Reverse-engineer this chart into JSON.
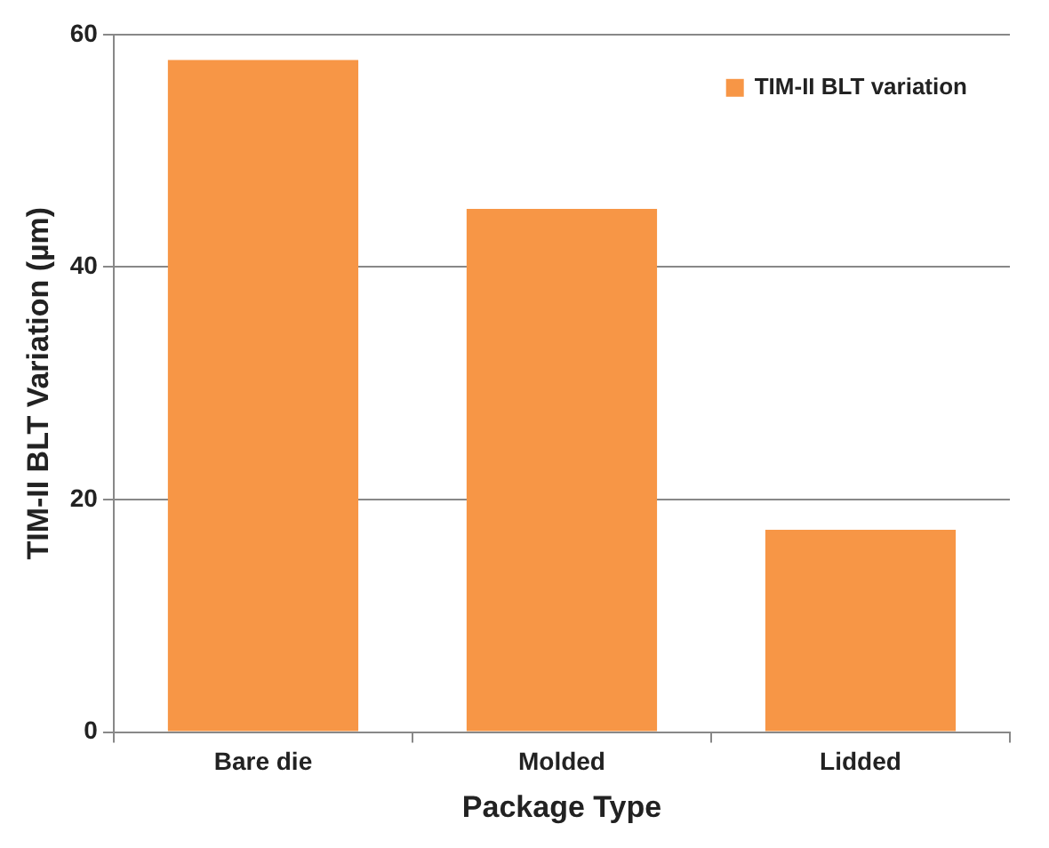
{
  "chart_data": {
    "type": "bar",
    "xlabel": "Package Type",
    "ylabel": "TIM-II BLT Variation (µm)",
    "categories": [
      "Bare die",
      "Molded",
      "Lidded"
    ],
    "series": [
      {
        "name": "TIM-II BLT variation",
        "color": "#f79646",
        "values": [
          57.8,
          45.0,
          17.4
        ]
      }
    ],
    "ylim": [
      0,
      60
    ],
    "yticks": [
      0,
      20,
      40,
      60
    ],
    "grid": "y",
    "legend": "top right"
  }
}
